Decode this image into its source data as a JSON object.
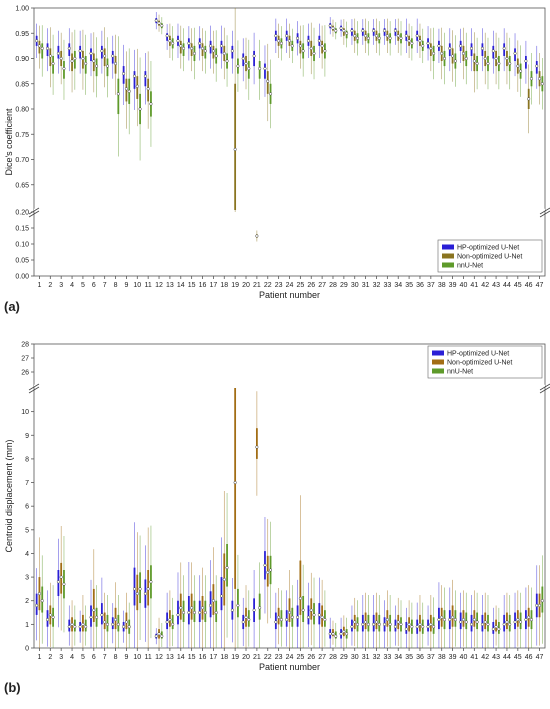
{
  "chart_data": [
    {
      "panel": "(a)",
      "type": "box",
      "xlabel": "Patient number",
      "ylabel": "Dice's coefficient",
      "categories": [
        "1",
        "2",
        "3",
        "4",
        "5",
        "6",
        "7",
        "8",
        "9",
        "10",
        "11",
        "12",
        "13",
        "14",
        "15",
        "16",
        "17",
        "18",
        "19",
        "20",
        "21",
        "22",
        "23",
        "24",
        "25",
        "26",
        "27",
        "28",
        "29",
        "30",
        "31",
        "32",
        "33",
        "34",
        "35",
        "36",
        "37",
        "38",
        "39",
        "40",
        "41",
        "42",
        "43",
        "44",
        "45",
        "46",
        "47"
      ],
      "y_ticks_lower": [
        "0.00",
        "0.05",
        "0.10",
        "0.15",
        "0.20"
      ],
      "y_ticks_upper": [
        "0.65",
        "0.70",
        "0.75",
        "0.80",
        "0.85",
        "0.90",
        "0.95",
        "1.00"
      ],
      "y_axis_break": [
        0.2,
        0.6
      ],
      "legend": {
        "position": "bottom-right",
        "entries": [
          "HP-optimized U-Net",
          "Non-optimized U-Net",
          "nnU-Net"
        ]
      },
      "colors": {
        "HP-optimized U-Net": "#2a1fd6",
        "Non-optimized U-Net": "#8a7420",
        "nnU-Net": "#5e9a2a"
      },
      "series": [
        {
          "name": "HP-optimized U-Net",
          "median": [
            0.935,
            0.92,
            0.91,
            0.92,
            0.915,
            0.91,
            0.915,
            0.905,
            0.87,
            0.865,
            0.865,
            0.975,
            0.945,
            0.935,
            0.93,
            0.93,
            0.925,
            0.925,
            0.915,
            0.9,
            0.905,
            0.88,
            0.945,
            0.945,
            0.94,
            0.935,
            0.935,
            0.965,
            0.96,
            0.955,
            0.955,
            0.955,
            0.955,
            0.955,
            0.945,
            0.945,
            0.93,
            0.925,
            0.92,
            0.925,
            0.92,
            0.92,
            0.915,
            0.92,
            0.91,
            0.895,
            0.885
          ],
          "q1": [
            0.925,
            0.905,
            0.9,
            0.905,
            0.9,
            0.895,
            0.9,
            0.89,
            0.85,
            0.84,
            0.845,
            0.97,
            0.935,
            0.925,
            0.92,
            0.92,
            0.91,
            0.91,
            0.9,
            0.885,
            0.885,
            0.86,
            0.935,
            0.935,
            0.93,
            0.925,
            0.925,
            0.96,
            0.955,
            0.945,
            0.945,
            0.945,
            0.945,
            0.945,
            0.935,
            0.935,
            0.92,
            0.915,
            0.905,
            0.915,
            0.905,
            0.905,
            0.9,
            0.905,
            0.895,
            0.88,
            0.87
          ],
          "q3": [
            0.945,
            0.93,
            0.925,
            0.93,
            0.925,
            0.92,
            0.925,
            0.915,
            0.885,
            0.875,
            0.875,
            0.98,
            0.95,
            0.945,
            0.94,
            0.94,
            0.935,
            0.935,
            0.925,
            0.91,
            0.915,
            0.89,
            0.955,
            0.955,
            0.95,
            0.945,
            0.945,
            0.97,
            0.965,
            0.96,
            0.96,
            0.96,
            0.96,
            0.96,
            0.955,
            0.955,
            0.94,
            0.935,
            0.93,
            0.935,
            0.93,
            0.93,
            0.925,
            0.93,
            0.92,
            0.905,
            0.895
          ]
        },
        {
          "name": "Non-optimized U-Net",
          "median": [
            0.925,
            0.905,
            0.9,
            0.895,
            0.9,
            0.895,
            0.905,
            0.89,
            0.84,
            0.845,
            0.84,
            0.97,
            0.935,
            0.925,
            0.92,
            0.92,
            0.915,
            0.91,
            0.72,
            0.89,
            0.125,
            0.855,
            0.935,
            0.935,
            0.925,
            0.92,
            0.925,
            0.96,
            0.955,
            0.945,
            0.945,
            0.945,
            0.945,
            0.945,
            0.935,
            0.935,
            0.92,
            0.91,
            0.905,
            0.91,
            0.895,
            0.9,
            0.9,
            0.9,
            0.885,
            0.82,
            0.86
          ],
          "q1": [
            0.91,
            0.885,
            0.885,
            0.875,
            0.88,
            0.875,
            0.885,
            0.87,
            0.815,
            0.82,
            0.815,
            0.965,
            0.925,
            0.91,
            0.905,
            0.905,
            0.9,
            0.895,
            0.6,
            0.875,
            0.12,
            0.83,
            0.925,
            0.925,
            0.91,
            0.905,
            0.91,
            0.955,
            0.945,
            0.935,
            0.935,
            0.935,
            0.935,
            0.935,
            0.925,
            0.925,
            0.905,
            0.895,
            0.89,
            0.895,
            0.875,
            0.885,
            0.885,
            0.885,
            0.87,
            0.8,
            0.845
          ],
          "q3": [
            0.935,
            0.92,
            0.915,
            0.91,
            0.915,
            0.91,
            0.92,
            0.905,
            0.86,
            0.865,
            0.86,
            0.975,
            0.945,
            0.935,
            0.93,
            0.93,
            0.925,
            0.925,
            0.85,
            0.905,
            0.13,
            0.875,
            0.945,
            0.945,
            0.935,
            0.935,
            0.935,
            0.965,
            0.96,
            0.955,
            0.955,
            0.955,
            0.955,
            0.955,
            0.945,
            0.945,
            0.93,
            0.925,
            0.92,
            0.925,
            0.91,
            0.915,
            0.915,
            0.915,
            0.9,
            0.84,
            0.875
          ]
        },
        {
          "name": "nnU-Net",
          "median": [
            0.92,
            0.89,
            0.88,
            0.9,
            0.89,
            0.885,
            0.885,
            0.83,
            0.835,
            0.8,
            0.81,
            0.965,
            0.93,
            0.92,
            0.91,
            0.915,
            0.905,
            0.895,
            0.885,
            0.88,
            0.88,
            0.83,
            0.93,
            0.925,
            0.915,
            0.91,
            0.915,
            0.955,
            0.95,
            0.94,
            0.94,
            0.94,
            0.94,
            0.94,
            0.93,
            0.925,
            0.91,
            0.9,
            0.895,
            0.9,
            0.89,
            0.89,
            0.89,
            0.89,
            0.875,
            0.86,
            0.85
          ],
          "q1": [
            0.9,
            0.87,
            0.86,
            0.88,
            0.87,
            0.865,
            0.865,
            0.79,
            0.81,
            0.77,
            0.785,
            0.96,
            0.92,
            0.905,
            0.895,
            0.9,
            0.89,
            0.88,
            0.87,
            0.86,
            0.86,
            0.81,
            0.92,
            0.915,
            0.9,
            0.895,
            0.9,
            0.95,
            0.94,
            0.93,
            0.93,
            0.93,
            0.93,
            0.93,
            0.92,
            0.915,
            0.895,
            0.885,
            0.88,
            0.885,
            0.875,
            0.875,
            0.875,
            0.875,
            0.86,
            0.845,
            0.835
          ],
          "q3": [
            0.93,
            0.905,
            0.895,
            0.915,
            0.905,
            0.9,
            0.9,
            0.86,
            0.86,
            0.83,
            0.835,
            0.97,
            0.94,
            0.93,
            0.925,
            0.925,
            0.92,
            0.91,
            0.9,
            0.895,
            0.895,
            0.85,
            0.94,
            0.935,
            0.93,
            0.925,
            0.93,
            0.96,
            0.955,
            0.95,
            0.95,
            0.95,
            0.95,
            0.95,
            0.94,
            0.935,
            0.925,
            0.915,
            0.91,
            0.915,
            0.905,
            0.905,
            0.905,
            0.905,
            0.89,
            0.875,
            0.865
          ]
        }
      ]
    },
    {
      "panel": "(b)",
      "type": "box",
      "xlabel": "Patient number",
      "ylabel": "Centroid displacement (mm)",
      "categories": [
        "1",
        "2",
        "3",
        "4",
        "5",
        "6",
        "7",
        "8",
        "9",
        "10",
        "11",
        "12",
        "13",
        "14",
        "15",
        "16",
        "17",
        "18",
        "19",
        "20",
        "21",
        "22",
        "23",
        "24",
        "25",
        "26",
        "27",
        "28",
        "29",
        "30",
        "31",
        "32",
        "33",
        "34",
        "35",
        "36",
        "37",
        "38",
        "39",
        "40",
        "41",
        "42",
        "43",
        "44",
        "45",
        "46",
        "47"
      ],
      "y_ticks_lower": [
        "0",
        "1",
        "2",
        "3",
        "4",
        "5",
        "6",
        "7",
        "8",
        "9",
        "10"
      ],
      "y_ticks_upper": [
        "26",
        "27",
        "28"
      ],
      "y_axis_break": [
        11,
        25
      ],
      "legend": {
        "position": "top-right",
        "entries": [
          "HP-optimized U-Net",
          "Non-optimized U-Net",
          "nnU-Net"
        ]
      },
      "colors": {
        "HP-optimized U-Net": "#2a1fd6",
        "Non-optimized U-Net": "#a26d14",
        "nnU-Net": "#5e9a2a"
      },
      "series": [
        {
          "name": "HP-optimized U-Net",
          "median": [
            1.8,
            1.2,
            2.8,
            0.9,
            0.9,
            1.3,
            1.4,
            1.0,
            0.9,
            2.5,
            2.3,
            0.5,
            1.1,
            1.4,
            1.5,
            1.5,
            1.8,
            2.2,
            1.6,
            1.1,
            1.6,
            3.5,
            1.1,
            1.2,
            1.3,
            1.3,
            1.4,
            0.6,
            0.6,
            0.9,
            1.0,
            1.0,
            1.0,
            0.9,
            0.8,
            0.9,
            0.9,
            1.2,
            1.2,
            1.1,
            1.0,
            1.0,
            0.8,
            1.0,
            1.1,
            1.2,
            1.8
          ],
          "q1": [
            1.4,
            0.9,
            2.2,
            0.7,
            0.7,
            0.9,
            1.0,
            0.8,
            0.7,
            1.8,
            1.7,
            0.4,
            0.8,
            1.0,
            1.0,
            1.1,
            1.3,
            1.6,
            1.2,
            0.8,
            1.1,
            2.9,
            0.8,
            0.9,
            0.9,
            1.0,
            1.0,
            0.4,
            0.4,
            0.7,
            0.7,
            0.7,
            0.7,
            0.7,
            0.6,
            0.6,
            0.7,
            0.8,
            0.8,
            0.8,
            0.7,
            0.7,
            0.6,
            0.7,
            0.8,
            0.8,
            1.3
          ],
          "q3": [
            2.3,
            1.6,
            3.3,
            1.2,
            1.1,
            1.8,
            1.9,
            1.3,
            1.1,
            3.4,
            2.9,
            0.6,
            1.5,
            2.0,
            2.2,
            2.0,
            2.4,
            3.0,
            2.0,
            1.4,
            2.1,
            4.1,
            1.5,
            1.6,
            1.8,
            1.8,
            1.9,
            0.8,
            0.8,
            1.2,
            1.4,
            1.4,
            1.3,
            1.2,
            1.1,
            1.2,
            1.2,
            1.7,
            1.6,
            1.5,
            1.4,
            1.4,
            1.1,
            1.4,
            1.5,
            1.6,
            2.3
          ]
        },
        {
          "name": "Non-optimized U-Net",
          "median": [
            2.3,
            1.4,
            3.0,
            1.0,
            1.0,
            1.6,
            1.1,
            1.2,
            1.1,
            2.3,
            2.5,
            0.6,
            1.2,
            1.7,
            1.7,
            1.7,
            2.0,
            2.9,
            7.0,
            1.3,
            8.5,
            3.2,
            1.3,
            1.5,
            2.1,
            1.6,
            1.3,
            0.6,
            0.7,
            1.1,
            1.1,
            1.1,
            1.2,
            1.1,
            1.0,
            1.0,
            1.0,
            1.3,
            1.3,
            1.2,
            1.2,
            1.1,
            0.9,
            1.1,
            1.2,
            1.3,
            1.8
          ],
          "q1": [
            1.6,
            1.0,
            2.3,
            0.7,
            0.7,
            1.1,
            0.8,
            0.8,
            0.8,
            1.6,
            1.8,
            0.4,
            0.9,
            1.2,
            1.2,
            1.2,
            1.4,
            1.8,
            2.5,
            0.9,
            8.0,
            2.6,
            1.0,
            1.1,
            1.4,
            1.2,
            0.9,
            0.5,
            0.5,
            0.8,
            0.8,
            0.8,
            0.9,
            0.8,
            0.7,
            0.7,
            0.7,
            0.9,
            0.9,
            0.9,
            0.9,
            0.8,
            0.7,
            0.8,
            0.9,
            0.9,
            1.3
          ],
          "q3": [
            3.0,
            1.8,
            3.6,
            1.3,
            1.4,
            2.5,
            1.5,
            1.7,
            1.5,
            3.1,
            3.3,
            0.8,
            1.6,
            2.3,
            2.3,
            2.2,
            2.7,
            4.0,
            11.0,
            1.7,
            9.3,
            3.9,
            1.7,
            2.1,
            3.7,
            2.1,
            1.8,
            0.8,
            0.9,
            1.4,
            1.5,
            1.5,
            1.6,
            1.4,
            1.3,
            1.4,
            1.4,
            1.7,
            1.8,
            1.6,
            1.6,
            1.5,
            1.2,
            1.5,
            1.6,
            1.7,
            2.3
          ]
        },
        {
          "name": "nnU-Net",
          "median": [
            2.0,
            1.3,
            2.7,
            0.9,
            0.9,
            1.3,
            1.0,
            1.0,
            0.9,
            2.5,
            2.8,
            0.5,
            1.0,
            1.5,
            1.5,
            1.5,
            1.5,
            3.4,
            1.8,
            1.2,
            1.7,
            3.3,
            1.2,
            1.3,
            1.6,
            1.4,
            1.2,
            0.5,
            0.6,
            1.0,
            1.0,
            1.0,
            1.0,
            1.0,
            0.9,
            0.9,
            0.9,
            1.2,
            1.2,
            1.1,
            1.1,
            1.0,
            0.8,
            1.0,
            1.1,
            1.2,
            2.0
          ],
          "q1": [
            1.5,
            0.9,
            2.1,
            0.7,
            0.7,
            0.9,
            0.7,
            0.7,
            0.6,
            1.9,
            2.1,
            0.4,
            0.8,
            1.1,
            1.1,
            1.1,
            1.1,
            2.6,
            1.3,
            0.9,
            1.2,
            2.7,
            0.9,
            0.9,
            1.1,
            1.0,
            0.9,
            0.4,
            0.4,
            0.7,
            0.7,
            0.7,
            0.7,
            0.7,
            0.6,
            0.6,
            0.6,
            0.8,
            0.9,
            0.8,
            0.8,
            0.7,
            0.6,
            0.7,
            0.8,
            0.8,
            1.5
          ],
          "q3": [
            2.6,
            1.7,
            3.3,
            1.2,
            1.2,
            1.7,
            1.4,
            1.4,
            1.2,
            3.2,
            3.5,
            0.7,
            1.4,
            2.0,
            2.0,
            2.0,
            2.0,
            4.4,
            2.5,
            1.6,
            2.3,
            3.9,
            1.6,
            1.7,
            2.2,
            1.9,
            1.6,
            0.7,
            0.8,
            1.3,
            1.4,
            1.4,
            1.4,
            1.3,
            1.2,
            1.2,
            1.3,
            1.6,
            1.6,
            1.5,
            1.5,
            1.4,
            1.1,
            1.4,
            1.5,
            1.6,
            2.6
          ]
        }
      ]
    }
  ]
}
